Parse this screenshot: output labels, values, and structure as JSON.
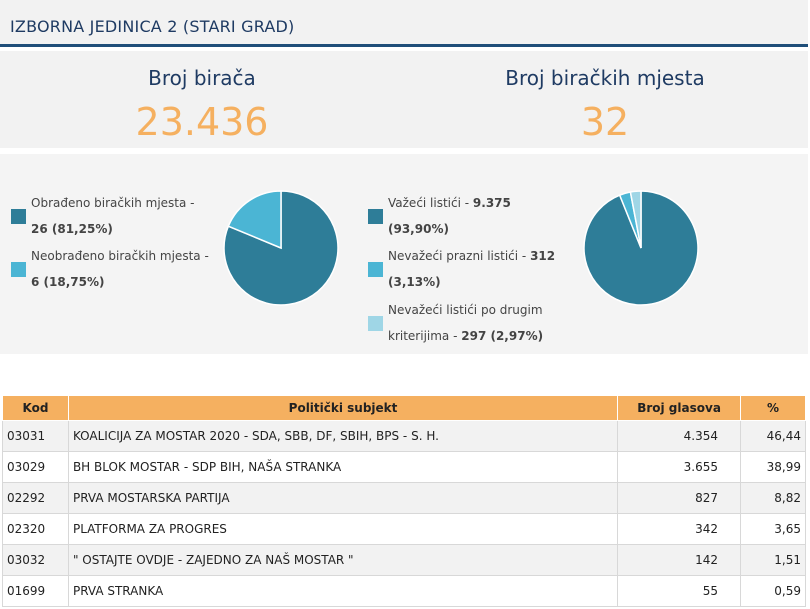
{
  "header": {
    "title": "IZBORNA JEDINICA 2 (STARI GRAD)"
  },
  "stats": {
    "voters_label": "Broj birača",
    "voters_value": "23.436",
    "stations_label": "Broj biračkih mjesta",
    "stations_value": "32"
  },
  "chart_data": [
    {
      "type": "pie",
      "categories": [
        "Obrađeno biračkih mjesta",
        "Neobrađeno biračkih mjesta"
      ],
      "values": [
        26,
        6
      ],
      "percents": [
        81.25,
        18.75
      ],
      "colors": [
        "#2e7d98",
        "#4bb5d4"
      ]
    },
    {
      "type": "pie",
      "categories": [
        "Važeći listići",
        "Nevažeći prazni listići",
        "Nevažeći listići po drugim kriterijima"
      ],
      "values": [
        9375,
        312,
        297
      ],
      "percents": [
        93.9,
        3.13,
        2.97
      ],
      "colors": [
        "#2e7d98",
        "#4bb5d4",
        "#9fd6e6"
      ]
    }
  ],
  "legend1": [
    {
      "line1": "Obrađeno biračkih mjesta -",
      "line2": "26 (81,25%)"
    },
    {
      "line1": "Neobrađeno biračkih mjesta -",
      "line2": "6 (18,75%)"
    }
  ],
  "legend2": [
    {
      "line1_text": "Važeći listići - ",
      "line1_bold": "9.375",
      "line2": "(93,90%)"
    },
    {
      "line1_text": "Nevažeći prazni listići - ",
      "line1_bold": "312",
      "line2": "(3,13%)"
    },
    {
      "line1_text": "Nevažeći listići po drugim",
      "line1_bold": "",
      "line2_text": "kriterijima - ",
      "line2": "297 (2,97%)"
    }
  ],
  "table": {
    "headers": [
      "Kod",
      "Politički subjekt",
      "Broj glasova",
      "%"
    ],
    "rows": [
      [
        "03031",
        "KOALICIJA ZA MOSTAR 2020 - SDA, SBB, DF, SBIH, BPS - S. H.",
        "4.354",
        "46,44"
      ],
      [
        "03029",
        "BH BLOK MOSTAR - SDP BIH, NAŠA STRANKA",
        "3.655",
        "38,99"
      ],
      [
        "02292",
        "PRVA MOSTARSKA PARTIJA",
        "827",
        "8,82"
      ],
      [
        "02320",
        "PLATFORMA ZA PROGRES",
        "342",
        "3,65"
      ],
      [
        "03032",
        "\" OSTAJTE OVDJE - ZAJEDNO ZA NAŠ MOSTAR \"",
        "142",
        "1,51"
      ],
      [
        "01699",
        "PRVA STRANKA",
        "55",
        "0,59"
      ]
    ]
  }
}
